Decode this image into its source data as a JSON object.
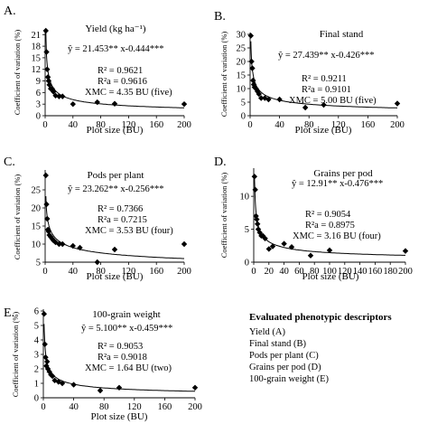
{
  "legend_box": {
    "title": "Evaluated phenotypic descriptors",
    "items": [
      "Yield (A)",
      "Final stand (B)",
      "Pods per plant (C)",
      "Grains per pod (D)",
      "100-grain weight (E)"
    ]
  },
  "chart_data": [
    {
      "type": "scatter",
      "panel_label": "A.",
      "title": "Yield (kg ha⁻¹)",
      "equation": "ŷ = 21.453** x-0.444***",
      "r2": "R² = 0.9621",
      "r2a": "R²a = 0.9616",
      "xmc": "XMC = 4.35 BU (five)",
      "xlabel": "Plot size (BU)",
      "ylabel": "Coefficient of variation (%)",
      "xlim": [
        0,
        200
      ],
      "ylim": [
        0,
        22
      ],
      "xticks": [
        0,
        40,
        80,
        120,
        160,
        200
      ],
      "yticks": [
        0,
        3,
        6,
        9,
        12,
        15,
        18,
        21
      ],
      "fit": {
        "a": 21.453,
        "b": -0.444
      },
      "x": [
        1,
        2,
        3,
        4,
        5,
        6,
        8,
        10,
        12,
        15,
        20,
        25,
        40,
        75,
        100,
        200
      ],
      "y": [
        22.0,
        16.5,
        12.0,
        10.0,
        9.0,
        8.0,
        7.0,
        7.0,
        6.2,
        5.2,
        5.0,
        5.0,
        3.0,
        3.5,
        3.1,
        3.0
      ]
    },
    {
      "type": "scatter",
      "panel_label": "B.",
      "title": "Final stand",
      "equation": "ŷ = 27.439** x-0.426***",
      "r2": "R² = 0.9211",
      "r2a": "R²a = 0.9101",
      "xmc": "XMC = 5.00 BU (five)",
      "xlabel": "Plot size (BU)",
      "ylabel": "Coefficient of variation (%)",
      "xlim": [
        0,
        200
      ],
      "ylim": [
        0,
        30
      ],
      "xticks": [
        0,
        40,
        80,
        120,
        160,
        200
      ],
      "yticks": [
        0,
        5,
        10,
        15,
        20,
        25,
        30
      ],
      "fit": {
        "a": 27.439,
        "b": -0.426
      },
      "x": [
        1,
        2,
        3,
        4,
        5,
        6,
        8,
        10,
        12,
        15,
        20,
        25,
        40,
        75,
        100,
        200
      ],
      "y": [
        29.5,
        20.0,
        17.5,
        13.0,
        11.5,
        10.5,
        10.0,
        9.0,
        8.0,
        6.5,
        6.5,
        6.0,
        6.0,
        3.0,
        4.0,
        4.5
      ]
    },
    {
      "type": "scatter",
      "panel_label": "C.",
      "title": "Pods per plant",
      "equation": "ŷ = 23.262** x-0.256***",
      "r2": "R² = 0.7366",
      "r2a": "R²a = 0.7215",
      "xmc": "XMC = 3.53 BU (four)",
      "xlabel": "Plot size (BU)",
      "ylabel": "Coefficient of variation (%)",
      "xlim": [
        0,
        200
      ],
      "ylim": [
        5,
        30
      ],
      "xticks": [
        0,
        40,
        80,
        120,
        160,
        200
      ],
      "yticks": [
        5,
        10,
        15,
        20,
        25
      ],
      "fit": {
        "a": 23.262,
        "b": -0.256
      },
      "x": [
        1,
        2,
        3,
        4,
        5,
        6,
        8,
        10,
        12,
        15,
        20,
        25,
        40,
        50,
        75,
        100,
        200
      ],
      "y": [
        29.0,
        21.0,
        17.0,
        14.0,
        13.5,
        12.5,
        12.0,
        11.5,
        11.0,
        10.5,
        10.0,
        10.0,
        9.5,
        9.0,
        5.0,
        8.5,
        10.0
      ]
    },
    {
      "type": "scatter",
      "panel_label": "D.",
      "title": "Grains per pod",
      "equation": "ŷ = 12.91** x-0.476***",
      "r2": "R² = 0.9054",
      "r2a": "R²a = 0.8975",
      "xmc": "XMC = 3.16 BU (four)",
      "xlabel": "Plot size (BU)",
      "ylabel": "Coefficient of variation (%)",
      "xlim": [
        0,
        200
      ],
      "ylim": [
        0,
        14
      ],
      "xticks": [
        0,
        20,
        40,
        60,
        80,
        100,
        120,
        140,
        160,
        180,
        200
      ],
      "yticks": [
        0,
        5,
        10
      ],
      "fit": {
        "a": 12.91,
        "b": -0.476
      },
      "x": [
        1,
        2,
        3,
        4,
        5,
        6,
        8,
        10,
        12,
        15,
        20,
        25,
        40,
        50,
        75,
        100,
        200
      ],
      "y": [
        13.0,
        11.0,
        7.0,
        6.5,
        5.8,
        5.0,
        4.5,
        4.0,
        4.0,
        3.6,
        2.0,
        2.4,
        2.8,
        2.3,
        1.0,
        1.8,
        1.7
      ]
    },
    {
      "type": "scatter",
      "panel_label": "E.",
      "title": "100-grain weight",
      "equation": "ŷ = 5.100** x-0.459***",
      "r2": "R² = 0.9053",
      "r2a": "R²a = 0.9018",
      "xmc": "XMC = 1.64 BU (two)",
      "xlabel": "Plot size (BU)",
      "ylabel": "Coefficient of variation (%)",
      "xlim": [
        0,
        200
      ],
      "ylim": [
        0,
        6
      ],
      "xticks": [
        0,
        40,
        80,
        120,
        160,
        200
      ],
      "yticks": [
        0,
        1,
        2,
        3,
        4,
        5,
        6
      ],
      "fit": {
        "a": 5.1,
        "b": -0.459
      },
      "x": [
        1,
        2,
        3,
        4,
        5,
        6,
        8,
        10,
        12,
        15,
        20,
        25,
        40,
        75,
        100,
        200
      ],
      "y": [
        5.8,
        3.7,
        2.8,
        2.2,
        2.5,
        2.0,
        1.8,
        1.6,
        1.5,
        1.2,
        1.1,
        1.0,
        0.9,
        0.5,
        0.7,
        0.7
      ]
    }
  ]
}
